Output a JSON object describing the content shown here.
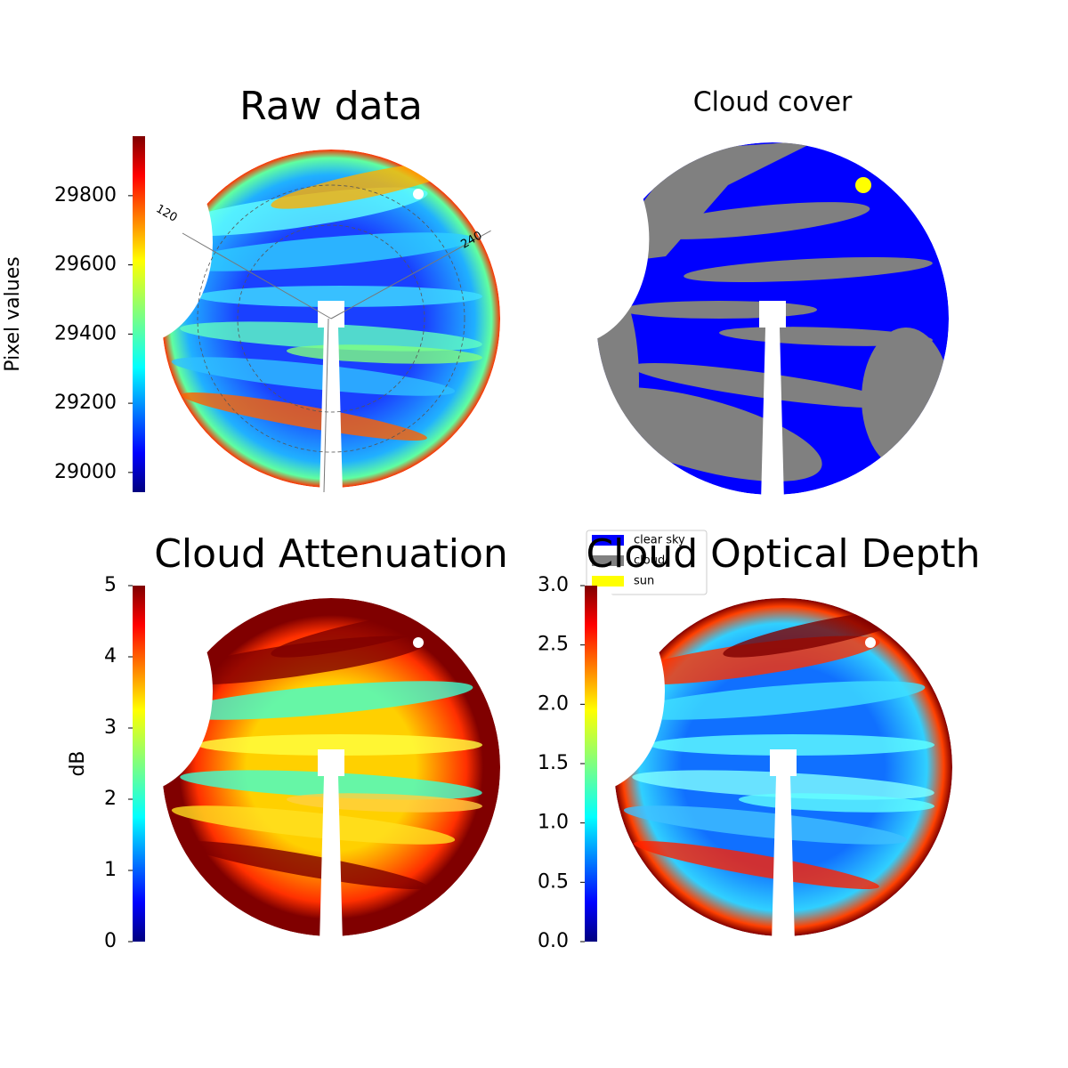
{
  "chart_data": [
    {
      "type": "image",
      "title": "Raw data",
      "colorbar_label": "Pixel values",
      "ylim": [
        28943,
        29972
      ],
      "yticks": [
        29000,
        29200,
        29400,
        29600,
        29800
      ],
      "annotations": [
        "120",
        "240"
      ]
    },
    {
      "type": "categorical",
      "title": "Cloud cover",
      "series": [
        {
          "name": "clear sky",
          "color": "#0000ff"
        },
        {
          "name": "cloud",
          "color": "#808080"
        },
        {
          "name": "sun",
          "color": "#ffff00"
        }
      ]
    },
    {
      "type": "image",
      "title": "Cloud Attenuation",
      "colorbar_label": "dB",
      "ylim": [
        0,
        5
      ],
      "yticks": [
        0,
        1,
        2,
        3,
        4,
        5
      ]
    },
    {
      "type": "image",
      "title": "Cloud Optical Depth",
      "ylim": [
        0,
        3
      ],
      "yticks": [
        {
          "value": 0,
          "label": "0.0"
        },
        {
          "value": 0.5,
          "label": "0.5"
        },
        {
          "value": 1,
          "label": "1.0"
        },
        {
          "value": 1.5,
          "label": "1.5"
        },
        {
          "value": 2,
          "label": "2.0"
        },
        {
          "value": 2.5,
          "label": "2.5"
        },
        {
          "value": 3,
          "label": "3.0"
        }
      ]
    }
  ]
}
